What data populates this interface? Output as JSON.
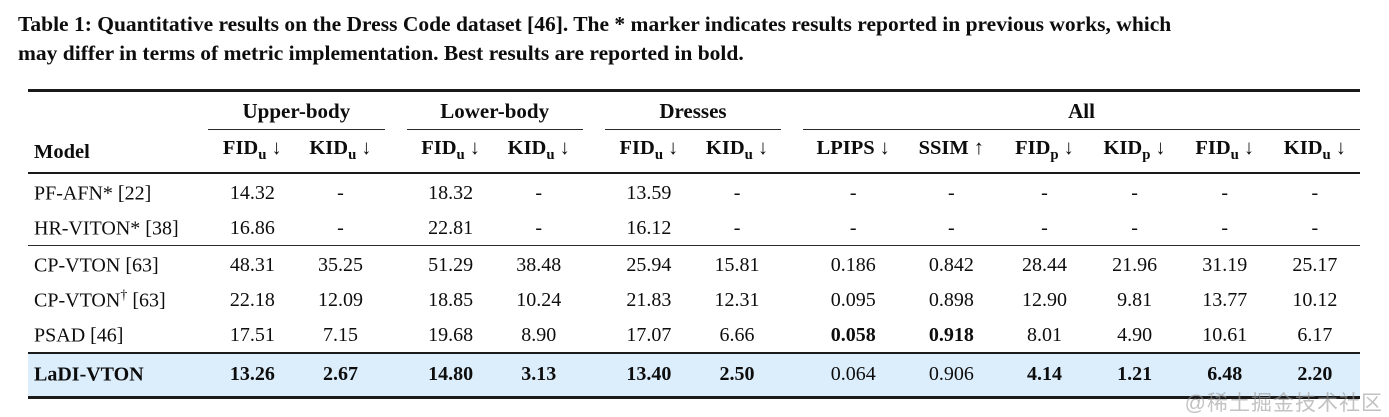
{
  "caption": {
    "line1": "Table 1: Quantitative results on the Dress Code dataset [46]. The * marker indicates results reported in previous works, which",
    "line2": "may differ in terms of metric implementation. Best results are reported in bold."
  },
  "table": {
    "model_header": "Model",
    "groups": [
      {
        "label": "Upper-body"
      },
      {
        "label": "Lower-body"
      },
      {
        "label": "Dresses"
      },
      {
        "label": "All"
      }
    ],
    "metric_headers": [
      {
        "name": "FID",
        "sub": "u",
        "arrow": "↓"
      },
      {
        "name": "KID",
        "sub": "u",
        "arrow": "↓"
      },
      {
        "name": "FID",
        "sub": "u",
        "arrow": "↓"
      },
      {
        "name": "KID",
        "sub": "u",
        "arrow": "↓"
      },
      {
        "name": "FID",
        "sub": "u",
        "arrow": "↓"
      },
      {
        "name": "KID",
        "sub": "u",
        "arrow": "↓"
      },
      {
        "name": "LPIPS",
        "sub": "",
        "arrow": "↓"
      },
      {
        "name": "SSIM",
        "sub": "",
        "arrow": "↑"
      },
      {
        "name": "FID",
        "sub": "p",
        "arrow": "↓"
      },
      {
        "name": "KID",
        "sub": "p",
        "arrow": "↓"
      },
      {
        "name": "FID",
        "sub": "u",
        "arrow": "↓"
      },
      {
        "name": "KID",
        "sub": "u",
        "arrow": "↓"
      }
    ],
    "rows": [
      {
        "model": {
          "name": "PF-AFN*",
          "sup": "",
          "ref": " [22]"
        },
        "values": [
          "14.32",
          "-",
          "18.32",
          "-",
          "13.59",
          "-",
          "-",
          "-",
          "-",
          "-",
          "-",
          "-"
        ],
        "bold": [],
        "model_bold": false,
        "highlight": false,
        "rule": "none",
        "first": true
      },
      {
        "model": {
          "name": "HR-VITON*",
          "sup": "",
          "ref": " [38]"
        },
        "values": [
          "16.86",
          "-",
          "22.81",
          "-",
          "16.12",
          "-",
          "-",
          "-",
          "-",
          "-",
          "-",
          "-"
        ],
        "bold": [],
        "model_bold": false,
        "highlight": false,
        "rule": "none",
        "first": false
      },
      {
        "model": {
          "name": "CP-VTON",
          "sup": "",
          "ref": " [63]"
        },
        "values": [
          "48.31",
          "35.25",
          "51.29",
          "38.48",
          "25.94",
          "15.81",
          "0.186",
          "0.842",
          "28.44",
          "21.96",
          "31.19",
          "25.17"
        ],
        "bold": [],
        "model_bold": false,
        "highlight": false,
        "rule": "thin",
        "first": false
      },
      {
        "model": {
          "name": "CP-VTON",
          "sup": "†",
          "ref": " [63]"
        },
        "values": [
          "22.18",
          "12.09",
          "18.85",
          "10.24",
          "21.83",
          "12.31",
          "0.095",
          "0.898",
          "12.90",
          "9.81",
          "13.77",
          "10.12"
        ],
        "bold": [],
        "model_bold": false,
        "highlight": false,
        "rule": "none",
        "first": false
      },
      {
        "model": {
          "name": "PSAD",
          "sup": "",
          "ref": " [46]"
        },
        "values": [
          "17.51",
          "7.15",
          "19.68",
          "8.90",
          "17.07",
          "6.66",
          "0.058",
          "0.918",
          "8.01",
          "4.90",
          "10.61",
          "6.17"
        ],
        "bold": [
          6,
          7
        ],
        "model_bold": false,
        "highlight": false,
        "rule": "none",
        "first": false
      },
      {
        "model": {
          "name": "LaDI-VTON",
          "sup": "",
          "ref": ""
        },
        "values": [
          "13.26",
          "2.67",
          "14.80",
          "3.13",
          "13.40",
          "2.50",
          "0.064",
          "0.906",
          "4.14",
          "1.21",
          "6.48",
          "2.20"
        ],
        "bold": [
          0,
          1,
          2,
          3,
          4,
          5,
          8,
          9,
          10,
          11
        ],
        "model_bold": true,
        "highlight": true,
        "rule": "med",
        "first": false
      }
    ]
  },
  "watermark": {
    "text": "@稀土掘金技术社区"
  },
  "colors": {
    "highlight_row": "#dceefb",
    "text": "#0d0d0d",
    "rule": "#1a1a1a",
    "watermark": "#9a9a9a"
  }
}
